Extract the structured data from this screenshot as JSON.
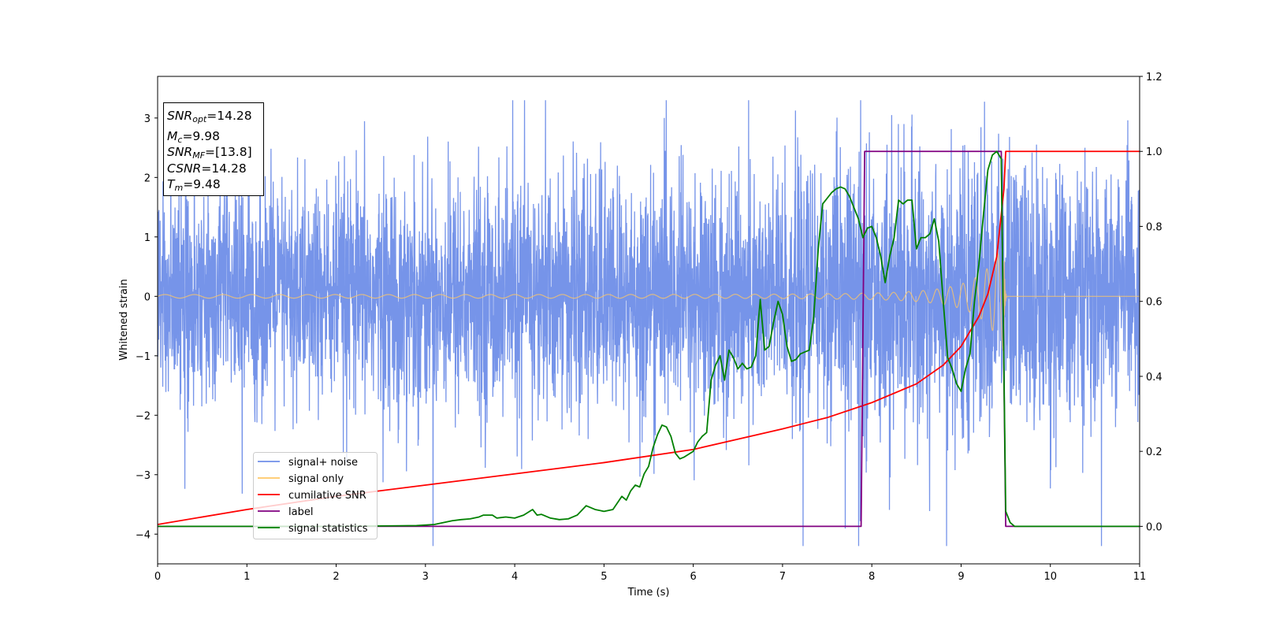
{
  "chart_data": {
    "type": "line",
    "xlabel": "Time (s)",
    "ylabel": "Whitened strain",
    "xlim": [
      0,
      11
    ],
    "ylim": [
      -4.5,
      3.7
    ],
    "y2lim": [
      -0.1,
      1.2
    ],
    "grid": false,
    "legend_position": "lower-left",
    "x_ticks": [
      "0",
      "1",
      "2",
      "3",
      "4",
      "5",
      "6",
      "7",
      "8",
      "9",
      "10",
      "11"
    ],
    "y_ticks": [
      "−4",
      "−3",
      "−2",
      "−1",
      "0",
      "1",
      "2",
      "3"
    ],
    "y2_ticks": [
      "0.0",
      "0.2",
      "0.4",
      "0.6",
      "0.8",
      "1.0",
      "1.2"
    ],
    "info_box": {
      "snr_opt": {
        "base": "SNR",
        "sub": "opt",
        "value": "=14.28"
      },
      "mc": {
        "base": "M",
        "sub": "c",
        "value": "=9.98"
      },
      "snr_mf": {
        "base": "SNR",
        "sub": "MF",
        "value": "=[13.8]"
      },
      "csnr": {
        "base": "CSNR",
        "value": "=14.28"
      },
      "tm": {
        "base": "T",
        "sub": "m",
        "value": "=9.48"
      }
    },
    "series": [
      {
        "name": "signal+ noise",
        "color": "#6f8ee8",
        "axis": "left",
        "kind": "noise",
        "envelope": [
          [
            0,
            1.6
          ],
          [
            2,
            1.7
          ],
          [
            6,
            1.8
          ],
          [
            9.2,
            2.1
          ],
          [
            9.5,
            2.2
          ],
          [
            11,
            1.6
          ]
        ]
      },
      {
        "name": "signal only",
        "color": "#ffc766",
        "axis": "left",
        "kind": "chirp",
        "t_merge": 9.48,
        "amp_early": 0.03,
        "amp_peak": 0.95
      },
      {
        "name": "cumilative SNR",
        "color": "#ff0000",
        "axis": "right",
        "x": [
          0,
          1,
          2,
          3,
          4,
          5,
          6,
          7,
          7.5,
          8,
          8.5,
          8.8,
          9.0,
          9.2,
          9.3,
          9.4,
          9.48,
          9.5,
          11
        ],
        "y": [
          0.005,
          0.045,
          0.08,
          0.11,
          0.14,
          0.17,
          0.205,
          0.26,
          0.29,
          0.33,
          0.38,
          0.43,
          0.48,
          0.56,
          0.62,
          0.72,
          0.9,
          1.0,
          1.0
        ]
      },
      {
        "name": "label",
        "color": "#800080",
        "axis": "right",
        "x": [
          0,
          7.88,
          7.92,
          9.45,
          9.5,
          11
        ],
        "y": [
          0,
          0,
          1,
          1,
          0,
          0
        ]
      },
      {
        "name": "signal statistics",
        "color": "#008000",
        "axis": "right",
        "x": [
          0,
          1,
          2,
          2.9,
          3.1,
          3.2,
          3.3,
          3.4,
          3.5,
          3.6,
          3.65,
          3.75,
          3.8,
          3.9,
          4.0,
          4.1,
          4.2,
          4.25,
          4.3,
          4.4,
          4.5,
          4.6,
          4.7,
          4.8,
          4.9,
          5.0,
          5.1,
          5.2,
          5.25,
          5.3,
          5.35,
          5.4,
          5.45,
          5.5,
          5.55,
          5.6,
          5.65,
          5.7,
          5.75,
          5.8,
          5.85,
          5.9,
          6.0,
          6.05,
          6.1,
          6.15,
          6.2,
          6.25,
          6.3,
          6.35,
          6.4,
          6.45,
          6.5,
          6.55,
          6.6,
          6.65,
          6.7,
          6.75,
          6.8,
          6.85,
          6.9,
          6.95,
          7.0,
          7.05,
          7.1,
          7.15,
          7.2,
          7.25,
          7.3,
          7.35,
          7.4,
          7.45,
          7.5,
          7.55,
          7.6,
          7.65,
          7.7,
          7.75,
          7.8,
          7.85,
          7.9,
          7.95,
          8.0,
          8.05,
          8.1,
          8.15,
          8.2,
          8.25,
          8.3,
          8.35,
          8.4,
          8.45,
          8.5,
          8.55,
          8.6,
          8.65,
          8.7,
          8.75,
          8.8,
          8.85,
          8.9,
          8.95,
          9.0,
          9.05,
          9.1,
          9.15,
          9.2,
          9.25,
          9.3,
          9.35,
          9.4,
          9.45,
          9.5,
          9.55,
          9.6,
          10,
          11
        ],
        "y": [
          0,
          0,
          0,
          0.002,
          0.005,
          0.01,
          0.015,
          0.018,
          0.02,
          0.025,
          0.03,
          0.03,
          0.022,
          0.025,
          0.022,
          0.03,
          0.045,
          0.03,
          0.032,
          0.022,
          0.018,
          0.02,
          0.03,
          0.055,
          0.045,
          0.04,
          0.045,
          0.08,
          0.07,
          0.095,
          0.11,
          0.105,
          0.14,
          0.16,
          0.21,
          0.245,
          0.27,
          0.265,
          0.24,
          0.195,
          0.18,
          0.185,
          0.2,
          0.225,
          0.24,
          0.25,
          0.39,
          0.43,
          0.455,
          0.39,
          0.47,
          0.45,
          0.42,
          0.435,
          0.42,
          0.425,
          0.455,
          0.605,
          0.47,
          0.48,
          0.545,
          0.6,
          0.565,
          0.48,
          0.44,
          0.445,
          0.46,
          0.465,
          0.47,
          0.56,
          0.74,
          0.86,
          0.875,
          0.89,
          0.9,
          0.905,
          0.9,
          0.88,
          0.85,
          0.82,
          0.77,
          0.795,
          0.8,
          0.77,
          0.72,
          0.65,
          0.72,
          0.77,
          0.87,
          0.86,
          0.87,
          0.87,
          0.74,
          0.77,
          0.77,
          0.78,
          0.82,
          0.76,
          0.6,
          0.45,
          0.42,
          0.38,
          0.36,
          0.42,
          0.46,
          0.6,
          0.7,
          0.83,
          0.95,
          0.99,
          1.0,
          0.98,
          0.04,
          0.01,
          0.0,
          0,
          0
        ]
      }
    ]
  }
}
